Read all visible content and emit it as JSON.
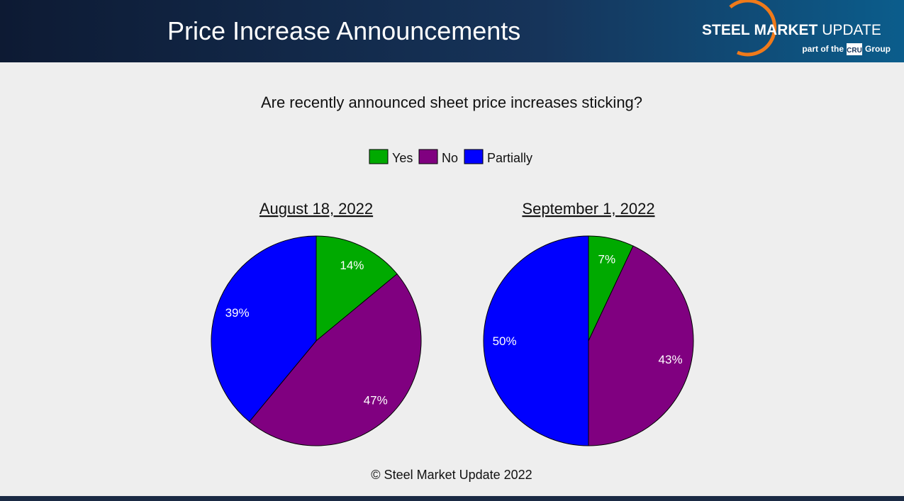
{
  "header": {
    "title": "Price Increase Announcements",
    "logo": {
      "word1": "STEEL",
      "word2": "MARKET",
      "word3": "UPDATE",
      "tagline": "part of the",
      "badge": "CRU",
      "group": "Group"
    }
  },
  "chart_data": {
    "type": "pie",
    "title": "Are recently announced sheet price increases sticking?",
    "categories": [
      "Yes",
      "No",
      "Partially"
    ],
    "colors": [
      "#00aa00",
      "#800080",
      "#0000ff"
    ],
    "series": [
      {
        "name": "August 18, 2022",
        "values": [
          14,
          47,
          39
        ],
        "value_labels": [
          "14%",
          "47%",
          "39%"
        ]
      },
      {
        "name": "September 1, 2022",
        "values": [
          7,
          43,
          50
        ],
        "value_labels": [
          "7%",
          "43%",
          "50%"
        ]
      }
    ]
  },
  "footer": "© Steel Market Update 2022"
}
